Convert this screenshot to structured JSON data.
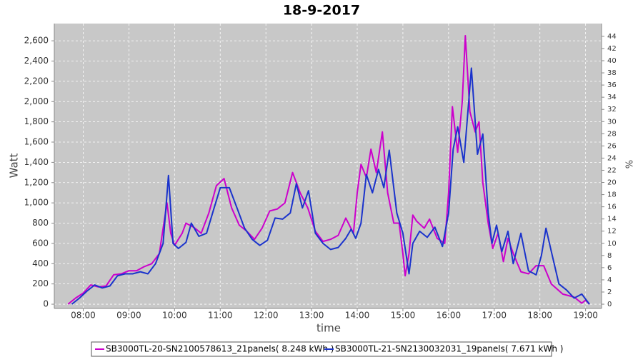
{
  "chart_data": {
    "type": "line",
    "title": "18-9-2017",
    "xlabel": "time",
    "ylabel": "Watt",
    "y2label": "%",
    "xlim": [
      "07:22",
      "19:21"
    ],
    "xticks": [
      "08:00",
      "09:00",
      "10:00",
      "11:00",
      "12:00",
      "13:00",
      "14:00",
      "15:00",
      "16:00",
      "17:00",
      "18:00",
      "19:00"
    ],
    "ylim": [
      -42,
      2770
    ],
    "yticks": [
      0,
      200,
      400,
      600,
      800,
      {
        "value": 1000,
        "label": "1,000"
      },
      {
        "value": 1200,
        "label": "1,200"
      },
      {
        "value": 1400,
        "label": "1,400"
      },
      {
        "value": 1600,
        "label": "1,600"
      },
      {
        "value": 1800,
        "label": "1,800"
      },
      {
        "value": 2000,
        "label": "2,000"
      },
      {
        "value": 2200,
        "label": "2,200"
      },
      {
        "value": 2400,
        "label": "2,400"
      },
      {
        "value": 2600,
        "label": "2,600"
      }
    ],
    "y2lim": [
      -0.7,
      46.1
    ],
    "y2ticks": [
      0,
      2,
      4,
      6,
      8,
      10,
      12,
      14,
      16,
      18,
      20,
      22,
      24,
      26,
      28,
      30,
      32,
      34,
      36,
      38,
      40,
      42,
      44
    ],
    "grid": true,
    "legend": "bottom",
    "series": [
      {
        "name": "SB3000TL-20-SN2100578613_21panels( 8.248 kWh )",
        "color": "#cc00cc",
        "x": [
          "07:40",
          "07:50",
          "08:00",
          "08:10",
          "08:20",
          "08:30",
          "08:40",
          "08:50",
          "09:00",
          "09:10",
          "09:20",
          "09:30",
          "09:40",
          "09:50",
          "09:55",
          "10:00",
          "10:10",
          "10:15",
          "10:25",
          "10:35",
          "10:45",
          "10:55",
          "11:05",
          "11:15",
          "11:25",
          "11:35",
          "11:45",
          "11:55",
          "12:05",
          "12:15",
          "12:25",
          "12:35",
          "12:45",
          "12:55",
          "13:05",
          "13:15",
          "13:25",
          "13:35",
          "13:45",
          "13:55",
          "14:00",
          "14:05",
          "14:12",
          "14:18",
          "14:25",
          "14:33",
          "14:40",
          "14:48",
          "14:55",
          "15:00",
          "15:03",
          "15:08",
          "15:13",
          "15:18",
          "15:28",
          "15:35",
          "15:45",
          "15:55",
          "16:00",
          "16:05",
          "16:12",
          "16:18",
          "16:22",
          "16:28",
          "16:35",
          "16:40",
          "16:45",
          "16:52",
          "16:58",
          "17:05",
          "17:12",
          "17:18",
          "17:25",
          "17:35",
          "17:45",
          "17:55",
          "18:05",
          "18:15",
          "18:30",
          "18:45",
          "18:55",
          "19:00",
          "19:05"
        ],
        "values": [
          0,
          60,
          110,
          190,
          170,
          180,
          290,
          300,
          330,
          330,
          370,
          400,
          500,
          1000,
          700,
          580,
          700,
          800,
          760,
          700,
          900,
          1170,
          1240,
          950,
          780,
          720,
          640,
          750,
          920,
          940,
          1000,
          1300,
          1100,
          950,
          720,
          620,
          640,
          680,
          850,
          700,
          1100,
          1380,
          1250,
          1530,
          1300,
          1700,
          1100,
          800,
          800,
          500,
          280,
          500,
          880,
          820,
          750,
          840,
          650,
          600,
          1100,
          1950,
          1500,
          2000,
          2650,
          1900,
          1700,
          1800,
          1200,
          800,
          550,
          700,
          420,
          650,
          500,
          320,
          300,
          380,
          380,
          200,
          100,
          70,
          10,
          40,
          0
        ]
      },
      {
        "name": "SB3000TL-21-SN2130032031_19panels( 7.671 kWh )",
        "color": "#1a33cc",
        "x": [
          "07:45",
          "07:55",
          "08:05",
          "08:15",
          "08:25",
          "08:35",
          "08:45",
          "08:55",
          "09:05",
          "09:15",
          "09:25",
          "09:35",
          "09:45",
          "09:52",
          "09:58",
          "10:05",
          "10:15",
          "10:22",
          "10:32",
          "10:42",
          "10:52",
          "11:00",
          "11:12",
          "11:22",
          "11:32",
          "11:42",
          "11:52",
          "12:02",
          "12:12",
          "12:22",
          "12:32",
          "12:40",
          "12:48",
          "12:56",
          "13:05",
          "13:15",
          "13:25",
          "13:35",
          "13:45",
          "13:52",
          "13:58",
          "14:05",
          "14:12",
          "14:20",
          "14:28",
          "14:35",
          "14:42",
          "14:52",
          "15:00",
          "15:08",
          "15:13",
          "15:22",
          "15:32",
          "15:42",
          "15:52",
          "16:00",
          "16:06",
          "16:12",
          "16:20",
          "16:30",
          "16:38",
          "16:45",
          "16:52",
          "16:57",
          "17:03",
          "17:10",
          "17:18",
          "17:25",
          "17:35",
          "17:45",
          "17:55",
          "18:02",
          "18:08",
          "18:15",
          "18:25",
          "18:35",
          "18:45",
          "18:55",
          "19:05"
        ],
        "values": [
          0,
          60,
          130,
          190,
          160,
          180,
          280,
          300,
          300,
          320,
          300,
          400,
          600,
          1270,
          600,
          550,
          610,
          800,
          670,
          700,
          950,
          1150,
          1150,
          950,
          750,
          640,
          580,
          630,
          850,
          840,
          900,
          1190,
          950,
          1120,
          700,
          600,
          540,
          560,
          650,
          740,
          650,
          800,
          1280,
          1100,
          1330,
          1150,
          1520,
          900,
          700,
          300,
          600,
          720,
          660,
          760,
          570,
          900,
          1530,
          1750,
          1400,
          2330,
          1480,
          1680,
          900,
          600,
          780,
          520,
          720,
          400,
          700,
          330,
          290,
          480,
          750,
          520,
          200,
          140,
          60,
          100,
          0
        ]
      }
    ]
  }
}
